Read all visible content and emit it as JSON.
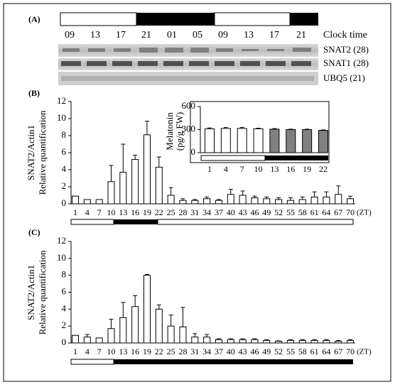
{
  "panel_a": {
    "label": "(A)",
    "times": [
      "09",
      "13",
      "17",
      "21",
      "01",
      "05",
      "09",
      "13",
      "17",
      "21"
    ],
    "time_label": "Clock time",
    "bands": [
      "SNAT2 (28)",
      "SNAT1 (28)",
      "UBQ5 (21)"
    ]
  },
  "chart_data": [
    {
      "type": "bar",
      "label": "(B)",
      "y_label": [
        "SNAT2/Actin1",
        "Relative quantification"
      ],
      "x_label": "(ZT)",
      "categories": [
        "1",
        "4",
        "7",
        "10",
        "13",
        "16",
        "19",
        "22",
        "25",
        "28",
        "31",
        "34",
        "37",
        "40",
        "43",
        "46",
        "49",
        "52",
        "55",
        "58",
        "61",
        "64",
        "67",
        "70"
      ],
      "values": [
        0.9,
        0.5,
        0.5,
        2.6,
        3.7,
        5.2,
        8.1,
        4.3,
        1.0,
        0.4,
        0.4,
        0.6,
        0.4,
        1.1,
        1.0,
        0.7,
        0.6,
        0.5,
        0.4,
        0.5,
        0.8,
        0.8,
        1.1,
        0.6
      ],
      "errors": [
        0,
        0,
        0,
        1.9,
        3.3,
        0.5,
        1.6,
        1.2,
        0.9,
        0.2,
        0.1,
        0.2,
        0.1,
        0.6,
        0.5,
        0.2,
        0.2,
        0.2,
        0.3,
        0.3,
        0.6,
        0.6,
        1.0,
        0.3
      ],
      "color": "#ffffff",
      "ylim": [
        0,
        12
      ],
      "yticks": [
        0,
        2,
        4,
        6,
        8,
        10,
        12
      ]
    },
    {
      "type": "bar",
      "y_label": [
        "Melatonin",
        "(pg/g FW)"
      ],
      "categories": [
        "1",
        "4",
        "7",
        "10",
        "13",
        "16",
        "19",
        "22"
      ],
      "values": [
        310,
        315,
        315,
        310,
        305,
        300,
        300,
        290
      ],
      "errors": [
        12,
        12,
        14,
        8,
        8,
        6,
        6,
        6
      ],
      "colors": [
        "#ffffff",
        "#ffffff",
        "#ffffff",
        "#ffffff",
        "#808080",
        "#808080",
        "#808080",
        "#808080"
      ],
      "ylim": [
        0,
        600
      ],
      "yticks": [
        0,
        300,
        600
      ]
    },
    {
      "type": "bar",
      "label": "(C)",
      "y_label": [
        "SNAT2/Actin1",
        "Relative quantification"
      ],
      "x_label": "(ZT)",
      "categories": [
        "1",
        "4",
        "7",
        "10",
        "13",
        "16",
        "19",
        "22",
        "25",
        "28",
        "31",
        "34",
        "37",
        "40",
        "43",
        "46",
        "49",
        "52",
        "55",
        "58",
        "61",
        "64",
        "67",
        "70"
      ],
      "values": [
        0.9,
        0.7,
        0.6,
        1.7,
        3.0,
        4.3,
        8.0,
        4.0,
        2.0,
        1.9,
        0.7,
        0.7,
        0.4,
        0.4,
        0.4,
        0.4,
        0.3,
        0.2,
        0.3,
        0.3,
        0.3,
        0.3,
        0.2,
        0.3
      ],
      "errors": [
        0,
        0.3,
        0,
        1.1,
        1.8,
        1.3,
        0.1,
        0.5,
        1.3,
        2.3,
        0.4,
        0.3,
        0.1,
        0.1,
        0.1,
        0.1,
        0.1,
        0.05,
        0.1,
        0.1,
        0.1,
        0.1,
        0.1,
        0.1
      ],
      "color": "#ffffff",
      "ylim": [
        0,
        12
      ],
      "yticks": [
        0,
        2,
        4,
        6,
        8,
        10,
        12
      ]
    }
  ]
}
